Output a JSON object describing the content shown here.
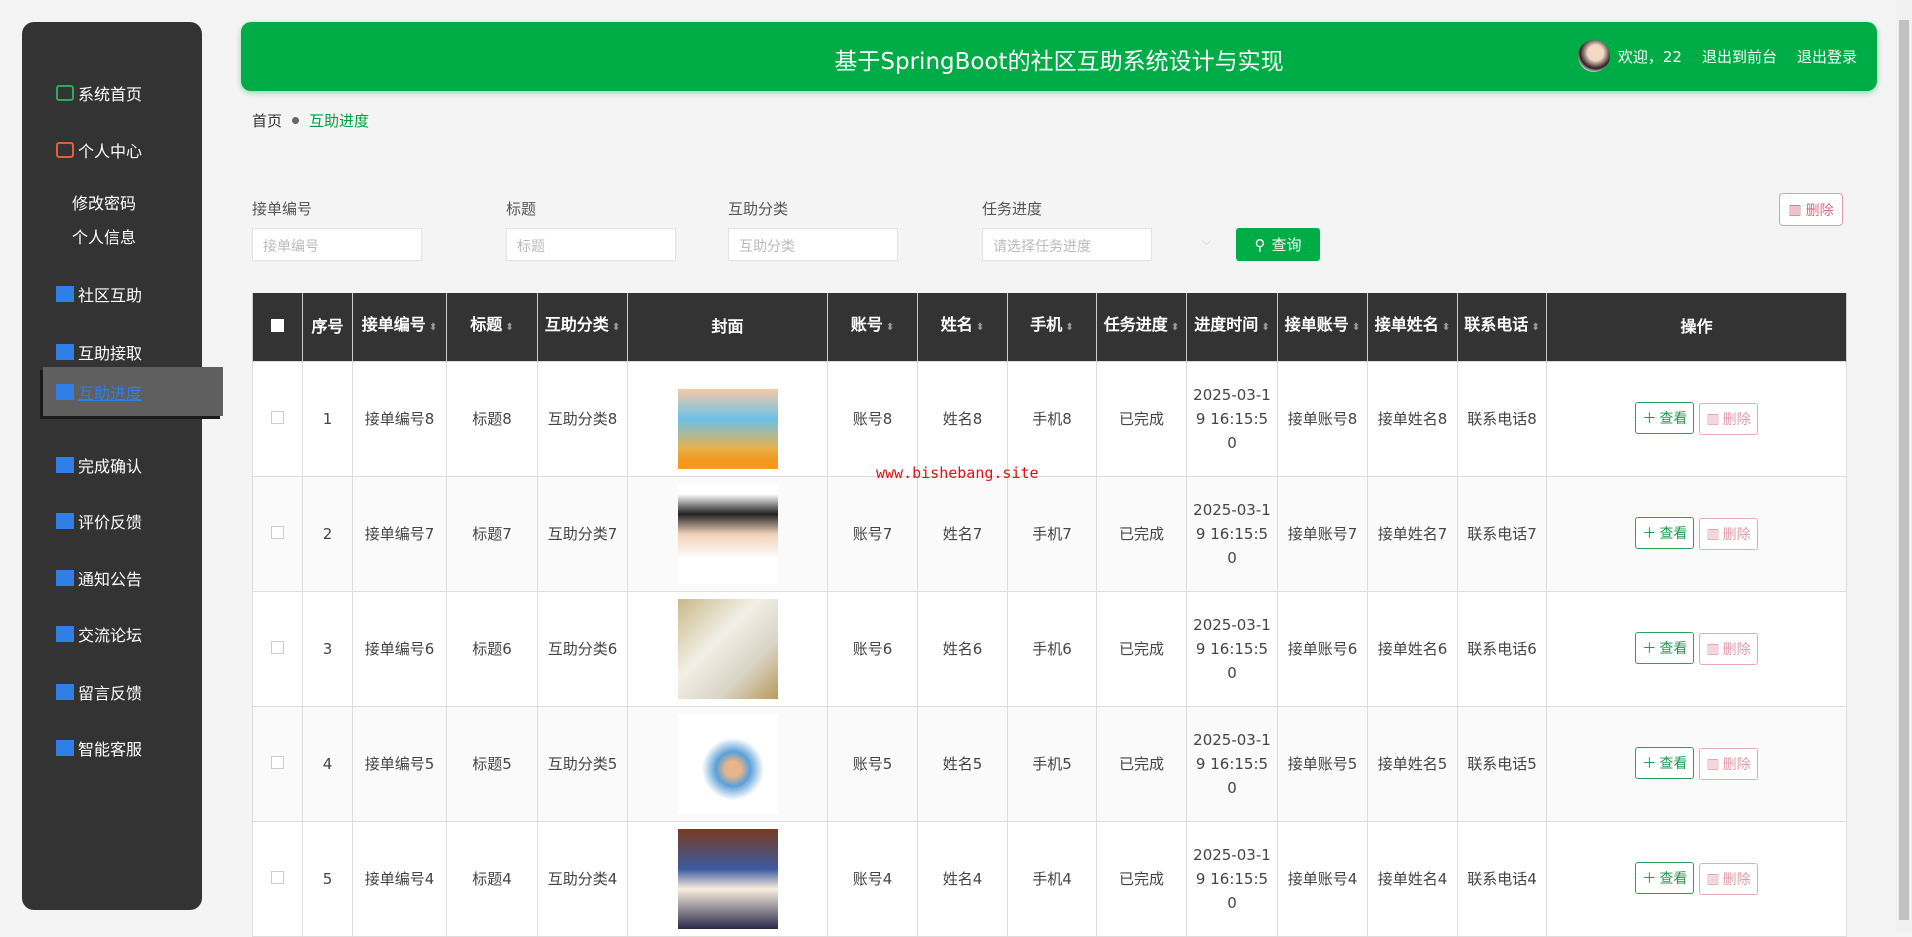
{
  "header": {
    "title": "基于SpringBoot的社区互助系统设计与实现",
    "welcome": "欢迎，22",
    "front": "退出到前台",
    "logout": "退出登录"
  },
  "sidebar": {
    "items": [
      {
        "label": "系统首页",
        "icon": "home-icon",
        "color": "#2eaa5b"
      },
      {
        "label": "个人中心",
        "icon": "wallet-icon",
        "color": "#e0603a"
      },
      {
        "label": "修改密码"
      },
      {
        "label": "个人信息"
      },
      {
        "label": "社区互助",
        "icon": "list-icon",
        "color": "#2f7fe6"
      },
      {
        "label": "互助接取",
        "icon": "grid-icon",
        "color": "#2f7fe6"
      },
      {
        "label": "互助进度",
        "icon": "card-icon",
        "color": "#2f7fe6",
        "active": true
      },
      {
        "label": "完成确认",
        "icon": "box-icon",
        "color": "#2f7fe6"
      },
      {
        "label": "评价反馈",
        "icon": "chart-icon",
        "color": "#2f7fe6"
      },
      {
        "label": "通知公告",
        "icon": "ticket-icon",
        "color": "#2f7fe6"
      },
      {
        "label": "交流论坛",
        "icon": "list-icon",
        "color": "#2f7fe6"
      },
      {
        "label": "留言反馈",
        "icon": "grid-icon",
        "color": "#2f7fe6"
      },
      {
        "label": "智能客服",
        "icon": "sliders-icon",
        "color": "#2f7fe6"
      }
    ]
  },
  "breadcrumb": {
    "home": "首页",
    "current": "互助进度"
  },
  "search": {
    "f1_label": "接单编号",
    "f1_ph": "接单编号",
    "f2_label": "标题",
    "f2_ph": "标题",
    "f3_label": "互助分类",
    "f3_ph": "互助分类",
    "f4_label": "任务进度",
    "f4_ph": "请选择任务进度",
    "query": "查询",
    "delete": "删除"
  },
  "table": {
    "headers": [
      "序号",
      "接单编号",
      "标题",
      "互助分类",
      "封面",
      "账号",
      "姓名",
      "手机",
      "任务进度",
      "进度时间",
      "接单账号",
      "接单姓名",
      "联系电话",
      "操作"
    ],
    "view": "查看",
    "delete": "删除",
    "rows": [
      {
        "no": "1",
        "code": "接单编号8",
        "title": "标题8",
        "cat": "互助分类8",
        "acc": "账号8",
        "name": "姓名8",
        "phone": "手机8",
        "status": "已完成",
        "time": "2025-03-19 16:15:50",
        "racc": "接单账号8",
        "rname": "接单姓名8",
        "tel": "联系电话8"
      },
      {
        "no": "2",
        "code": "接单编号7",
        "title": "标题7",
        "cat": "互助分类7",
        "acc": "账号7",
        "name": "姓名7",
        "phone": "手机7",
        "status": "已完成",
        "time": "2025-03-19 16:15:50",
        "racc": "接单账号7",
        "rname": "接单姓名7",
        "tel": "联系电话7"
      },
      {
        "no": "3",
        "code": "接单编号6",
        "title": "标题6",
        "cat": "互助分类6",
        "acc": "账号6",
        "name": "姓名6",
        "phone": "手机6",
        "status": "已完成",
        "time": "2025-03-19 16:15:50",
        "racc": "接单账号6",
        "rname": "接单姓名6",
        "tel": "联系电话6"
      },
      {
        "no": "4",
        "code": "接单编号5",
        "title": "标题5",
        "cat": "互助分类5",
        "acc": "账号5",
        "name": "姓名5",
        "phone": "手机5",
        "status": "已完成",
        "time": "2025-03-19 16:15:50",
        "racc": "接单账号5",
        "rname": "接单姓名5",
        "tel": "联系电话5"
      },
      {
        "no": "5",
        "code": "接单编号4",
        "title": "标题4",
        "cat": "互助分类4",
        "acc": "账号4",
        "name": "姓名4",
        "phone": "手机4",
        "status": "已完成",
        "time": "2025-03-19 16:15:50",
        "racc": "接单账号4",
        "rname": "接单姓名4",
        "tel": "联系电话4"
      }
    ]
  },
  "watermark": "www.bishebang.site",
  "colors": {
    "primary": "#00ac46",
    "sidebar": "#333333",
    "danger": "#d46a82"
  }
}
